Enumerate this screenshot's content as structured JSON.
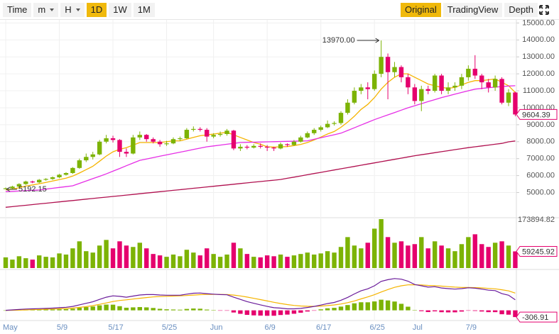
{
  "toolbar": {
    "left": [
      {
        "label": "Time"
      },
      {
        "label": "m",
        "dropdown": true
      },
      {
        "label": "H",
        "dropdown": true
      },
      {
        "label": "1D",
        "active": true
      },
      {
        "label": "1W"
      },
      {
        "label": "1M"
      }
    ],
    "right": [
      {
        "label": "Original",
        "active": true
      },
      {
        "label": "TradingView"
      },
      {
        "label": "Depth"
      }
    ]
  },
  "chart_data": {
    "type": "candlestick",
    "up_color": "#7cb305",
    "down_color": "#e5006d",
    "categories": [
      "May",
      null,
      null,
      null,
      null,
      null,
      null,
      null,
      "5/9",
      null,
      null,
      null,
      null,
      null,
      null,
      null,
      "5/17",
      null,
      null,
      null,
      null,
      null,
      null,
      null,
      "5/25",
      null,
      null,
      null,
      null,
      null,
      null,
      "Jun",
      null,
      null,
      null,
      null,
      null,
      null,
      null,
      "6/9",
      null,
      null,
      null,
      null,
      null,
      null,
      null,
      "6/17",
      null,
      null,
      null,
      null,
      null,
      null,
      null,
      "6/25",
      null,
      null,
      null,
      null,
      null,
      "Jul",
      null,
      null,
      null,
      null,
      null,
      null,
      null,
      "7/9",
      null,
      null,
      null,
      null,
      null,
      null,
      null
    ],
    "ohlc": [
      [
        5200,
        5300,
        5192.15,
        5250
      ],
      [
        5250,
        5400,
        5200,
        5350
      ],
      [
        5350,
        5550,
        5300,
        5500
      ],
      [
        5500,
        5700,
        5450,
        5650
      ],
      [
        5650,
        5700,
        5550,
        5600
      ],
      [
        5600,
        5800,
        5550,
        5750
      ],
      [
        5750,
        5850,
        5700,
        5800
      ],
      [
        5800,
        5950,
        5750,
        5900
      ],
      [
        5900,
        6100,
        5850,
        6050
      ],
      [
        6050,
        6200,
        6000,
        6150
      ],
      [
        6150,
        6500,
        6100,
        6450
      ],
      [
        6450,
        7000,
        6400,
        6900
      ],
      [
        6900,
        7300,
        6800,
        7100
      ],
      [
        7100,
        7400,
        6950,
        7250
      ],
      [
        7250,
        8100,
        7200,
        8000
      ],
      [
        8000,
        8400,
        7900,
        8200
      ],
      [
        8200,
        8350,
        7950,
        8100
      ],
      [
        8100,
        8150,
        7100,
        7400
      ],
      [
        7400,
        7600,
        7100,
        7300
      ],
      [
        7300,
        8400,
        7250,
        8250
      ],
      [
        8250,
        8600,
        8100,
        8400
      ],
      [
        8400,
        8450,
        8000,
        8150
      ],
      [
        8150,
        8250,
        7900,
        8000
      ],
      [
        8000,
        8100,
        7700,
        7850
      ],
      [
        7850,
        8050,
        7750,
        7900
      ],
      [
        7900,
        8250,
        7850,
        8150
      ],
      [
        8150,
        8300,
        8050,
        8200
      ],
      [
        8200,
        8800,
        8150,
        8700
      ],
      [
        8700,
        8900,
        8600,
        8750
      ],
      [
        8750,
        8850,
        8600,
        8700
      ],
      [
        8700,
        8800,
        8000,
        8300
      ],
      [
        8300,
        8500,
        8200,
        8400
      ],
      [
        8400,
        8600,
        8300,
        8450
      ],
      [
        8450,
        8750,
        8350,
        8650
      ],
      [
        8650,
        8700,
        7500,
        7600
      ],
      [
        7600,
        7850,
        7450,
        7700
      ],
      [
        7700,
        7800,
        7550,
        7650
      ],
      [
        7650,
        7850,
        7600,
        7750
      ],
      [
        7750,
        7900,
        7600,
        7700
      ],
      [
        7700,
        7800,
        7450,
        7650
      ],
      [
        7650,
        7700,
        7450,
        7600
      ],
      [
        7600,
        7950,
        7550,
        7850
      ],
      [
        7850,
        7900,
        7700,
        7800
      ],
      [
        7800,
        8100,
        7750,
        8000
      ],
      [
        8000,
        8350,
        7950,
        8250
      ],
      [
        8250,
        8600,
        8200,
        8500
      ],
      [
        8500,
        8800,
        8400,
        8700
      ],
      [
        8700,
        8950,
        8600,
        8850
      ],
      [
        8850,
        9250,
        8800,
        9050
      ],
      [
        9050,
        9200,
        8950,
        9100
      ],
      [
        9100,
        9800,
        9000,
        9700
      ],
      [
        9700,
        10500,
        9600,
        10300
      ],
      [
        10300,
        11200,
        10200,
        11000
      ],
      [
        11000,
        11400,
        10800,
        11200
      ],
      [
        11200,
        11500,
        10500,
        11100
      ],
      [
        11100,
        12200,
        11000,
        12000
      ],
      [
        12000,
        13970,
        11800,
        13000
      ],
      [
        13000,
        13200,
        10500,
        12100
      ],
      [
        12100,
        12700,
        11800,
        12400
      ],
      [
        12400,
        12500,
        11500,
        11800
      ],
      [
        11800,
        12000,
        10800,
        11200
      ],
      [
        11200,
        11400,
        10200,
        10400
      ],
      [
        10400,
        11300,
        9800,
        11100
      ],
      [
        11100,
        11300,
        10800,
        11000
      ],
      [
        11000,
        12000,
        10900,
        11900
      ],
      [
        11900,
        12000,
        10800,
        11000
      ],
      [
        11000,
        11500,
        10800,
        11200
      ],
      [
        11200,
        11500,
        11000,
        11300
      ],
      [
        11300,
        12000,
        11100,
        11800
      ],
      [
        11800,
        12500,
        11600,
        12300
      ],
      [
        12300,
        13100,
        11700,
        11900
      ],
      [
        11900,
        12000,
        11100,
        11500
      ],
      [
        11500,
        11700,
        10900,
        11200
      ],
      [
        11200,
        11900,
        11000,
        11700
      ],
      [
        11700,
        11800,
        10200,
        10300
      ],
      [
        10300,
        11100,
        10100,
        10900
      ],
      [
        10900,
        10950,
        9500,
        9604.39
      ]
    ],
    "ma": [
      {
        "color": "#f5b400",
        "values": [
          5150,
          5200,
          5280,
          5380,
          5450,
          5520,
          5600,
          5680,
          5760,
          5850,
          5970,
          6150,
          6350,
          6550,
          6850,
          7150,
          7400,
          7550,
          7650,
          7800,
          7950,
          7950,
          7950,
          7950,
          8000,
          8050,
          8050,
          8150,
          8250,
          8350,
          8400,
          8450,
          8500,
          8550,
          8400,
          8250,
          8100,
          7950,
          7850,
          7700,
          7680,
          7700,
          7710,
          7770,
          7840,
          7950,
          8100,
          8270,
          8450,
          8600,
          8850,
          9150,
          9500,
          9900,
          10200,
          10600,
          11100,
          11500,
          11800,
          12000,
          12000,
          11800,
          11600,
          11400,
          11300,
          11200,
          11150,
          11200,
          11350,
          11500,
          11600,
          11600,
          11650,
          11700,
          11500,
          11300,
          10900
        ]
      },
      {
        "color": "#e62ee6",
        "values": [
          5050,
          5070,
          5090,
          5110,
          5130,
          5150,
          5200,
          5250,
          5300,
          5350,
          5400,
          5540,
          5680,
          5820,
          5960,
          6100,
          6260,
          6420,
          6580,
          6740,
          6900,
          6980,
          7060,
          7140,
          7220,
          7300,
          7380,
          7460,
          7540,
          7620,
          7700,
          7750,
          7800,
          7850,
          7900,
          7950,
          7960,
          7970,
          7980,
          7990,
          8000,
          8010,
          8020,
          8030,
          8040,
          8050,
          8140,
          8230,
          8320,
          8410,
          8500,
          8660,
          8820,
          8980,
          9140,
          9300,
          9440,
          9580,
          9720,
          9860,
          10000,
          10120,
          10240,
          10360,
          10480,
          10600,
          10700,
          10800,
          10900,
          11000,
          11100,
          11140,
          11180,
          11220,
          11250,
          11280,
          11300
        ]
      },
      {
        "color": "#b0104f",
        "values": [
          4130,
          4170,
          4210,
          4250,
          4290,
          4330,
          4370,
          4410,
          4450,
          4490,
          4530,
          4570,
          4610,
          4650,
          4690,
          4730,
          4770,
          4810,
          4850,
          4890,
          4930,
          4970,
          5010,
          5050,
          5090,
          5130,
          5170,
          5210,
          5250,
          5290,
          5330,
          5370,
          5410,
          5450,
          5490,
          5530,
          5570,
          5610,
          5650,
          5690,
          5730,
          5770,
          5840,
          5910,
          5980,
          6050,
          6120,
          6190,
          6260,
          6330,
          6400,
          6470,
          6540,
          6610,
          6680,
          6750,
          6820,
          6890,
          6960,
          7030,
          7100,
          7170,
          7230,
          7290,
          7350,
          7410,
          7470,
          7530,
          7590,
          7650,
          7700,
          7750,
          7800,
          7850,
          7900,
          7990,
          8040
        ]
      }
    ],
    "ylim": [
      3600,
      15100
    ],
    "yticks": [
      {
        "value": 5000,
        "label": "5000.00"
      },
      {
        "value": 6000,
        "label": "6000.00"
      },
      {
        "value": 7000,
        "label": "7000.00"
      },
      {
        "value": 8000,
        "label": "8000.00"
      },
      {
        "value": 9000,
        "label": "9000.00"
      },
      {
        "value": 10000,
        "label": "10000.00"
      },
      {
        "value": 11000,
        "label": "11000.00"
      },
      {
        "value": 12000,
        "label": "12000.00"
      },
      {
        "value": 13000,
        "label": "13000.00"
      },
      {
        "value": 14000,
        "label": "14000.00"
      },
      {
        "value": 15000,
        "label": "15000.00"
      }
    ],
    "grid": true,
    "annotations": [
      {
        "value": 13970,
        "label": "13970.00",
        "at": "high"
      },
      {
        "value": 5192.15,
        "label": "5192.15",
        "at": "low"
      }
    ],
    "volume": [
      38000,
      30000,
      42000,
      35000,
      30000,
      45000,
      40000,
      38000,
      52000,
      48000,
      70000,
      95000,
      60000,
      55000,
      80000,
      100000,
      70000,
      95000,
      80000,
      75000,
      90000,
      70000,
      50000,
      45000,
      40000,
      48000,
      42000,
      65000,
      55000,
      45000,
      70000,
      50000,
      40000,
      48000,
      90000,
      70000,
      50000,
      40000,
      38000,
      45000,
      42000,
      48000,
      40000,
      45000,
      50000,
      55000,
      48000,
      52000,
      60000,
      55000,
      75000,
      110000,
      80000,
      70000,
      90000,
      140000,
      173894.82,
      110000,
      90000,
      95000,
      80000,
      85000,
      110000,
      70000,
      95000,
      80000,
      70000,
      60000,
      85000,
      110000,
      120000,
      85000,
      75000,
      90000,
      95000,
      80000,
      59245.92
    ],
    "vol_ylim": [
      0,
      173894.82
    ],
    "vol_yticks": [
      173894.82
    ],
    "macd": {
      "dif_color": "#6a1b9a",
      "dea_color": "#f5b400",
      "lim": [
        -400,
        1800
      ],
      "dif": [
        0,
        20,
        40,
        60,
        70,
        80,
        90,
        100,
        120,
        140,
        180,
        250,
        320,
        390,
        500,
        600,
        660,
        640,
        600,
        650,
        700,
        720,
        720,
        700,
        690,
        690,
        690,
        740,
        780,
        790,
        760,
        740,
        720,
        710,
        600,
        500,
        400,
        320,
        250,
        180,
        120,
        100,
        70,
        70,
        90,
        130,
        180,
        240,
        310,
        360,
        460,
        590,
        750,
        890,
        980,
        1120,
        1320,
        1400,
        1450,
        1420,
        1330,
        1180,
        1120,
        1060,
        1080,
        1020,
        990,
        970,
        990,
        1030,
        1010,
        970,
        920,
        900,
        760,
        690,
        480
      ],
      "dea": [
        0,
        4,
        11,
        21,
        31,
        41,
        51,
        61,
        73,
        86,
        105,
        134,
        171,
        215,
        272,
        338,
        402,
        450,
        480,
        514,
        551,
        585,
        612,
        630,
        642,
        652,
        660,
        676,
        697,
        716,
        725,
        728,
        726,
        723,
        698,
        658,
        606,
        549,
        489,
        427,
        366,
        313,
        264,
        225,
        198,
        184,
        183,
        194,
        217,
        246,
        289,
        349,
        429,
        521,
        613,
        714,
        835,
        948,
        1048,
        1122,
        1164,
        1167,
        1158,
        1138,
        1126,
        1105,
        1082,
        1060,
        1046,
        1043,
        1036,
        1023,
        1002,
        982,
        938,
        888,
        786
      ],
      "hist": [
        0,
        16,
        29,
        39,
        39,
        39,
        39,
        39,
        47,
        54,
        75,
        116,
        149,
        175,
        228,
        262,
        258,
        190,
        120,
        136,
        149,
        135,
        108,
        70,
        48,
        38,
        30,
        64,
        83,
        74,
        35,
        12,
        -6,
        -13,
        -98,
        -158,
        -206,
        -229,
        -239,
        -247,
        -246,
        -213,
        -194,
        -155,
        -108,
        -54,
        -3,
        46,
        93,
        114,
        171,
        241,
        321,
        369,
        367,
        406,
        485,
        452,
        402,
        298,
        166,
        13,
        -38,
        -78,
        -46,
        -85,
        -92,
        -90,
        -56,
        -13,
        -26,
        -53,
        -82,
        -82,
        -178,
        -198,
        -306.91
      ]
    }
  }
}
